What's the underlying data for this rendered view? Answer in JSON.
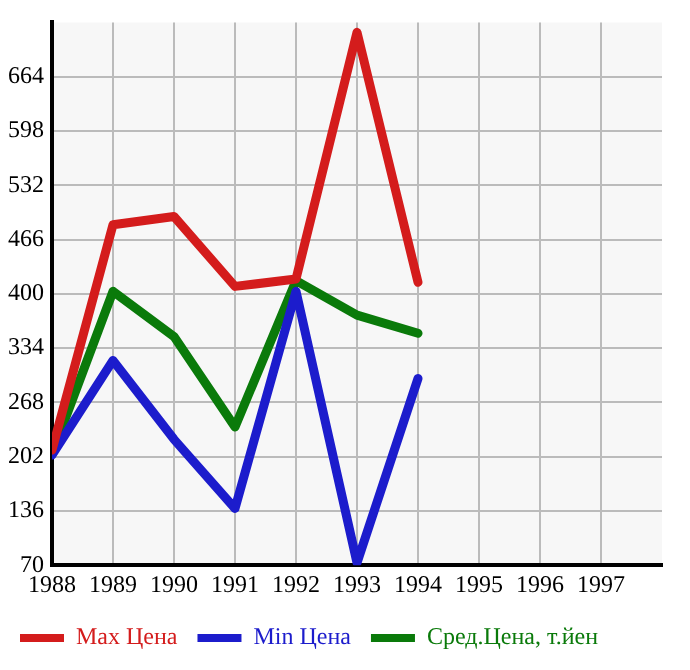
{
  "chart_data": {
    "type": "line",
    "x": [
      1988,
      1989,
      1990,
      1991,
      1992,
      1993,
      1994
    ],
    "series": [
      {
        "name": "Max Цена",
        "color": "#d41c1c",
        "values": [
          210,
          484,
          494,
          409,
          418,
          718,
          414
        ]
      },
      {
        "name": "Min Цена",
        "color": "#1c1ccc",
        "values": [
          204,
          319,
          223,
          139,
          403,
          73,
          297
        ]
      },
      {
        "name": "Сред.Цена, т.йен",
        "color": "#0a7a0a",
        "values": [
          205,
          403,
          348,
          238,
          416,
          374,
          352
        ]
      }
    ],
    "xlim": [
      1988,
      1998
    ],
    "xticks": [
      1988,
      1989,
      1990,
      1991,
      1992,
      1993,
      1994,
      1995,
      1996,
      1997
    ],
    "ylim": [
      70,
      730
    ],
    "yticks": [
      70,
      136,
      202,
      268,
      334,
      400,
      466,
      532,
      598,
      664
    ],
    "grid": true,
    "legend": "bottom",
    "marker": "none",
    "line_style": "solid"
  }
}
